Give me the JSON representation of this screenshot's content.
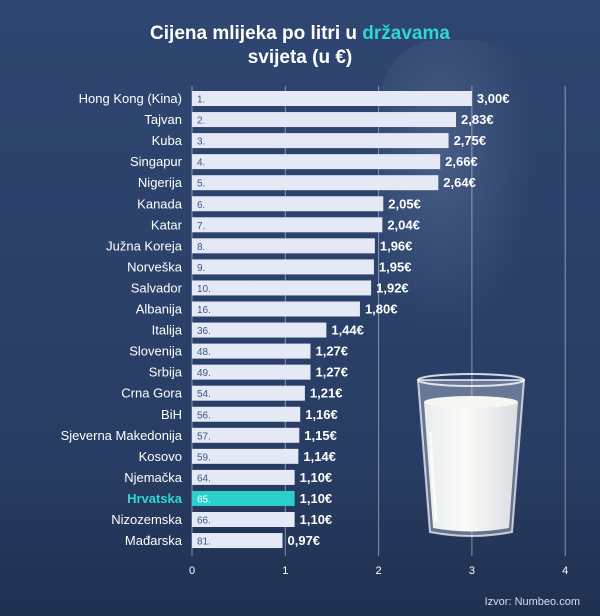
{
  "title": {
    "part1": "Cijena mlijeka po litri u ",
    "highlight": "državama",
    "part2": "svijeta (u €)"
  },
  "source": "Izvor: Numbeo.com",
  "colors": {
    "bar": "#e4e9f5",
    "bar_highlight": "#2bd0cc",
    "text": "#ffffff",
    "rank": "#3d5687",
    "accent": "#2fd6d3"
  },
  "chart_data": {
    "type": "bar",
    "orientation": "horizontal",
    "title": "Cijena mlijeka po litri u državama svijeta (u €)",
    "xlim": [
      0,
      4
    ],
    "x_ticks": [
      "0",
      "1",
      "2",
      "3",
      "4"
    ],
    "grid": true,
    "categories": [
      "Hong Kong (Kina)",
      "Tajvan",
      "Kuba",
      "Singapur",
      "Nigerija",
      "Kanada",
      "Katar",
      "Južna Koreja",
      "Norveška",
      "Salvador",
      "Albanija",
      "Italija",
      "Slovenija",
      "Srbija",
      "Crna Gora",
      "BiH",
      "Sjeverna Makedonija",
      "Kosovo",
      "Njemačka",
      "Hrvatska",
      "Nizozemska",
      "Mađarska"
    ],
    "ranks": [
      "1.",
      "2.",
      "3.",
      "4.",
      "5.",
      "6.",
      "7.",
      "8.",
      "9.",
      "10.",
      "16.",
      "36.",
      "48.",
      "49.",
      "54.",
      "56.",
      "57.",
      "59.",
      "64.",
      "65.",
      "66.",
      "81."
    ],
    "values": [
      3.0,
      2.83,
      2.75,
      2.66,
      2.64,
      2.05,
      2.04,
      1.96,
      1.95,
      1.92,
      1.8,
      1.44,
      1.27,
      1.27,
      1.21,
      1.16,
      1.15,
      1.14,
      1.1,
      1.1,
      1.1,
      0.97
    ],
    "value_labels": [
      "3,00€",
      "2,83€",
      "2,75€",
      "2,66€",
      "2,64€",
      "2,05€",
      "2,04€",
      "1,96€",
      "1,95€",
      "1,92€",
      "1,80€",
      "1,44€",
      "1,27€",
      "1,27€",
      "1,21€",
      "1,16€",
      "1,15€",
      "1,14€",
      "1,10€",
      "1,10€",
      "1,10€",
      "0,97€"
    ],
    "highlight": "Hrvatska"
  }
}
